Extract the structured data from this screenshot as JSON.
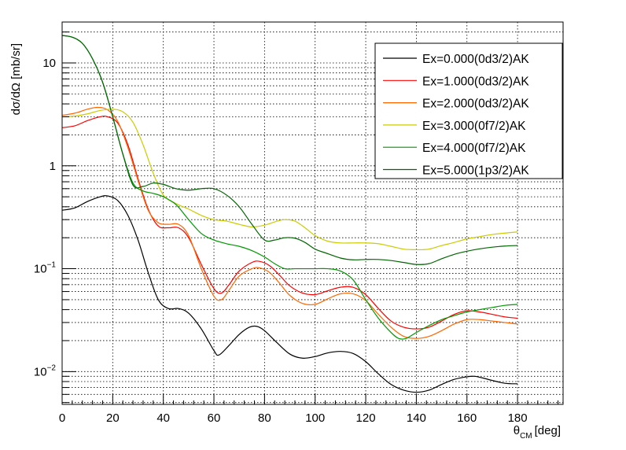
{
  "chart_data": {
    "type": "line",
    "title": "",
    "xlabel_main": "θ",
    "xlabel_sub": "CM",
    "xlabel_unit": "[deg]",
    "ylabel": "dσ/dΩ [mb/sr]",
    "xlim": [
      0,
      198
    ],
    "ylim": [
      0.0048,
      25
    ],
    "yscale": "log",
    "grid": true,
    "legend_position": "top-right",
    "x_ticks": [
      "0",
      "20",
      "40",
      "60",
      "80",
      "100",
      "120",
      "140",
      "160",
      "180"
    ],
    "y_tick_labels": [
      {
        "value": 0.01,
        "base": "10",
        "exp": "−2"
      },
      {
        "value": 0.1,
        "base": "10",
        "exp": "−1"
      },
      {
        "value": 1,
        "base": "1",
        "exp": ""
      },
      {
        "value": 10,
        "base": "10",
        "exp": ""
      }
    ],
    "series": [
      {
        "name": "Ex=0.000(0d3/2)AK",
        "color": "#000000",
        "x": [
          0,
          5,
          10,
          15,
          18,
          22,
          26,
          30,
          34,
          38,
          42,
          46,
          50,
          55,
          60,
          62,
          66,
          70,
          74,
          77,
          80,
          85,
          90,
          95,
          100,
          105,
          110,
          115,
          120,
          125,
          130,
          135,
          140,
          145,
          150,
          155,
          160,
          163,
          166,
          170,
          175,
          180
        ],
        "y": [
          0.37,
          0.39,
          0.45,
          0.5,
          0.51,
          0.46,
          0.33,
          0.19,
          0.092,
          0.05,
          0.041,
          0.041,
          0.037,
          0.026,
          0.016,
          0.0145,
          0.018,
          0.023,
          0.027,
          0.0275,
          0.025,
          0.019,
          0.0148,
          0.0135,
          0.014,
          0.0152,
          0.0157,
          0.015,
          0.0125,
          0.0095,
          0.0075,
          0.0066,
          0.0063,
          0.0066,
          0.0075,
          0.0084,
          0.0089,
          0.009,
          0.0087,
          0.0082,
          0.0077,
          0.0076
        ]
      },
      {
        "name": "Ex=1.000(0d3/2)AK",
        "color": "#ff0000",
        "x": [
          0,
          5,
          10,
          15,
          18,
          22,
          26,
          30,
          34,
          38,
          42,
          46,
          50,
          55,
          60,
          63,
          66,
          70,
          75,
          78,
          82,
          86,
          90,
          95,
          100,
          105,
          110,
          115,
          120,
          125,
          130,
          135,
          140,
          145,
          150,
          155,
          160,
          165,
          170,
          175,
          180
        ],
        "y": [
          2.35,
          2.45,
          2.75,
          3.0,
          3.0,
          2.6,
          1.6,
          0.75,
          0.38,
          0.26,
          0.25,
          0.25,
          0.2,
          0.11,
          0.064,
          0.058,
          0.07,
          0.095,
          0.115,
          0.118,
          0.107,
          0.086,
          0.068,
          0.058,
          0.056,
          0.061,
          0.066,
          0.066,
          0.056,
          0.041,
          0.031,
          0.027,
          0.026,
          0.027,
          0.031,
          0.036,
          0.039,
          0.038,
          0.036,
          0.034,
          0.033
        ]
      },
      {
        "name": "Ex=2.000(0d3/2)AK",
        "color": "#ff6600",
        "x": [
          0,
          5,
          10,
          14,
          18,
          22,
          26,
          30,
          34,
          38,
          42,
          46,
          50,
          55,
          60,
          63,
          66,
          70,
          75,
          78,
          82,
          86,
          90,
          95,
          100,
          105,
          110,
          115,
          120,
          125,
          130,
          135,
          140,
          145,
          150,
          155,
          160,
          165,
          170,
          175,
          180
        ],
        "y": [
          3.1,
          3.25,
          3.55,
          3.7,
          3.5,
          2.7,
          1.5,
          0.72,
          0.37,
          0.28,
          0.27,
          0.27,
          0.21,
          0.1,
          0.054,
          0.05,
          0.062,
          0.085,
          0.1,
          0.102,
          0.092,
          0.072,
          0.055,
          0.046,
          0.045,
          0.051,
          0.057,
          0.057,
          0.049,
          0.036,
          0.027,
          0.022,
          0.021,
          0.022,
          0.025,
          0.029,
          0.032,
          0.032,
          0.031,
          0.03,
          0.029
        ]
      },
      {
        "name": "Ex=3.000(0f7/2)AK",
        "color": "#cccc00",
        "x": [
          0,
          5,
          10,
          15,
          20,
          24,
          28,
          32,
          36,
          40,
          45,
          50,
          55,
          60,
          65,
          70,
          75,
          80,
          85,
          88,
          92,
          96,
          100,
          105,
          110,
          115,
          120,
          125,
          130,
          135,
          140,
          145,
          150,
          155,
          160,
          165,
          170,
          175,
          180
        ],
        "y": [
          3.0,
          3.05,
          3.2,
          3.45,
          3.55,
          3.35,
          2.65,
          1.6,
          0.85,
          0.52,
          0.43,
          0.38,
          0.33,
          0.3,
          0.29,
          0.27,
          0.255,
          0.265,
          0.29,
          0.3,
          0.29,
          0.25,
          0.21,
          0.185,
          0.178,
          0.178,
          0.178,
          0.175,
          0.165,
          0.155,
          0.153,
          0.155,
          0.168,
          0.18,
          0.195,
          0.205,
          0.215,
          0.222,
          0.228
        ]
      },
      {
        "name": "Ex=4.000(0f7/2)AK",
        "color": "#009900",
        "x": [
          0,
          4,
          8,
          12,
          16,
          20,
          24,
          28,
          32,
          36,
          40,
          45,
          50,
          55,
          60,
          65,
          70,
          75,
          80,
          84,
          88,
          92,
          96,
          100,
          105,
          110,
          115,
          120,
          125,
          130,
          133,
          136,
          140,
          145,
          150,
          155,
          160,
          165,
          170,
          175,
          180
        ],
        "y": [
          18.5,
          17.8,
          15.5,
          11.0,
          6.5,
          3.0,
          1.3,
          0.68,
          0.57,
          0.54,
          0.5,
          0.42,
          0.3,
          0.22,
          0.19,
          0.175,
          0.165,
          0.15,
          0.13,
          0.112,
          0.1,
          0.1,
          0.1,
          0.1,
          0.1,
          0.095,
          0.078,
          0.05,
          0.033,
          0.024,
          0.021,
          0.021,
          0.024,
          0.028,
          0.032,
          0.035,
          0.038,
          0.04,
          0.042,
          0.044,
          0.045
        ]
      },
      {
        "name": "Ex=5.000(1p3/2)AK",
        "color": "#006600",
        "x": [
          0,
          4,
          8,
          12,
          16,
          20,
          24,
          28,
          32,
          36,
          40,
          45,
          50,
          55,
          60,
          65,
          70,
          75,
          80,
          84,
          88,
          92,
          96,
          100,
          105,
          110,
          115,
          120,
          125,
          130,
          135,
          140,
          145,
          150,
          155,
          160,
          165,
          170,
          175,
          180
        ],
        "y": [
          18.5,
          17.8,
          15.5,
          11.0,
          6.5,
          3.0,
          1.3,
          0.65,
          0.63,
          0.68,
          0.66,
          0.6,
          0.58,
          0.6,
          0.6,
          0.52,
          0.4,
          0.27,
          0.19,
          0.19,
          0.2,
          0.198,
          0.18,
          0.155,
          0.14,
          0.127,
          0.122,
          0.123,
          0.123,
          0.12,
          0.115,
          0.11,
          0.112,
          0.125,
          0.138,
          0.148,
          0.156,
          0.162,
          0.166,
          0.168
        ]
      }
    ]
  }
}
